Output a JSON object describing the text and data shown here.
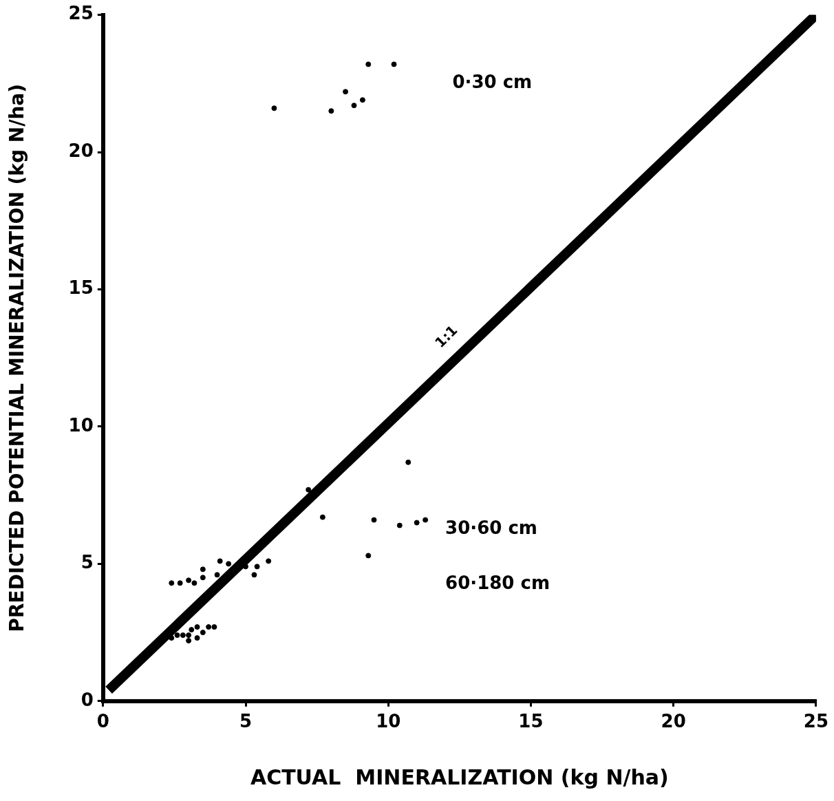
{
  "chart_data": {
    "type": "scatter",
    "xlabel": "ACTUAL  MINERALIZATION (kg N/ha)",
    "ylabel": "PREDICTED POTENTIAL MINERALIZATION (kg N/ha)",
    "xlim": [
      0,
      25
    ],
    "ylim": [
      0,
      25
    ],
    "xticks": [
      0,
      5,
      10,
      15,
      20,
      25
    ],
    "yticks": [
      0,
      5,
      10,
      15,
      20,
      25
    ],
    "grid": false,
    "legend": false,
    "marker": "circle",
    "series": [
      {
        "color": "#000000",
        "x": [
          6.0,
          8.0,
          8.5,
          8.8,
          9.1,
          9.3,
          10.2
        ],
        "values": [
          21.6,
          21.5,
          22.2,
          21.7,
          21.9,
          23.2,
          23.2
        ]
      },
      {
        "color": "#000000",
        "x": [
          7.2,
          7.7,
          9.5,
          10.4,
          11.0,
          11.3,
          10.7,
          9.3,
          4.1,
          4.4,
          3.5,
          3.5,
          4.0,
          5.0,
          5.4,
          5.8,
          5.3,
          2.4,
          2.7,
          3.0,
          3.2
        ],
        "values": [
          7.7,
          6.7,
          6.6,
          6.4,
          6.5,
          6.6,
          8.7,
          5.3,
          5.1,
          5.0,
          4.8,
          4.5,
          4.6,
          4.9,
          4.9,
          5.1,
          4.6,
          4.3,
          4.3,
          4.4,
          4.3
        ]
      },
      {
        "color": "#000000",
        "x": [
          2.4,
          2.6,
          2.8,
          3.0,
          3.1,
          3.0,
          3.3,
          3.3,
          3.5,
          3.7,
          3.9
        ],
        "values": [
          2.3,
          2.4,
          2.4,
          2.4,
          2.6,
          2.2,
          2.7,
          2.3,
          2.5,
          2.7,
          2.7
        ]
      },
      {
        "type": "line",
        "marker": "none",
        "color": "#000000",
        "x": [
          0.2,
          25
        ],
        "values": [
          0.4,
          25
        ]
      }
    ],
    "annotations": [
      "0·30 cm",
      "30·60 cm",
      "60·180 cm",
      {
        "text": "1:1",
        "x": 12.4,
        "y": 12.9
      }
    ]
  }
}
